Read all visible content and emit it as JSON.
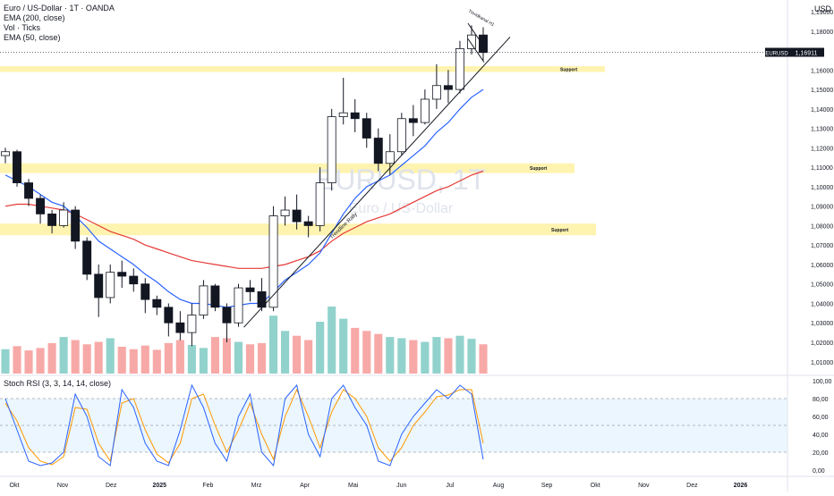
{
  "header": {
    "symbol_title": "Euro / US-Dollar · 1T · OANDA",
    "indicators": [
      "EMA (200, close)",
      "Vol · Ticks",
      "EMA (50, close)"
    ],
    "currency": "USD"
  },
  "watermark": {
    "symbol": "EURUSD, 1T",
    "name": "Euro / US-Dollar"
  },
  "price_axis": {
    "ticks": [
      "1,19000",
      "1,18000",
      "1,16000",
      "1,15000",
      "1,14000",
      "1,13000",
      "1,12000",
      "1,11000",
      "1,10000",
      "1,09000",
      "1,08000",
      "1,07000",
      "1,06000",
      "1,05000",
      "1,04000",
      "1,03000",
      "1,02000",
      "1,01000"
    ],
    "last_price_label": "1,16911",
    "symbol_badge": "EURUSD",
    "last_price": 1.16911
  },
  "oscillator": {
    "title": "Stoch RSI (3, 3, 14, 14, close)",
    "ticks": [
      "100,00",
      "80,00",
      "60,00",
      "40,00",
      "20,00",
      "0,00"
    ]
  },
  "time_axis": {
    "labels": [
      "Okt",
      "Nov",
      "Dez",
      "2025",
      "Feb",
      "Mrz",
      "Apr",
      "Mai",
      "Jun",
      "Jul",
      "Aug",
      "Sep",
      "Okt",
      "Nov",
      "Dez",
      "2026"
    ]
  },
  "annotations": {
    "zones": [
      {
        "label": "Support",
        "low": 1.159,
        "high": 1.162
      },
      {
        "label": "Support",
        "low": 1.107,
        "high": 1.112
      },
      {
        "label": "Support",
        "low": 1.075,
        "high": 1.081
      }
    ],
    "trendline_label": "Trendline Rally",
    "channel_label": "Trendkanal H1"
  },
  "colors": {
    "up": "#26a69a",
    "down": "#ef5350",
    "ema200": "#e53935",
    "ema50": "#2962ff",
    "zone": "#fff3b0",
    "stoch_k": "#2962ff",
    "stoch_d": "#ff9800",
    "osc_band": "#e3f2fd"
  },
  "chart_data": {
    "type": "candlestick",
    "title": "Euro / US-Dollar · 1T · OANDA",
    "ylim": [
      1.003,
      1.196
    ],
    "series": [
      {
        "name": "Price",
        "points": [
          {
            "t": "2024-09-27",
            "o": 1.116,
            "h": 1.12,
            "l": 1.112,
            "c": 1.118
          },
          {
            "t": "2024-10-04",
            "o": 1.118,
            "h": 1.119,
            "l": 1.1,
            "c": 1.102
          },
          {
            "t": "2024-10-11",
            "o": 1.102,
            "h": 1.104,
            "l": 1.09,
            "c": 1.094
          },
          {
            "t": "2024-10-18",
            "o": 1.094,
            "h": 1.096,
            "l": 1.081,
            "c": 1.086
          },
          {
            "t": "2024-10-25",
            "o": 1.086,
            "h": 1.088,
            "l": 1.076,
            "c": 1.08
          },
          {
            "t": "2024-11-01",
            "o": 1.08,
            "h": 1.092,
            "l": 1.079,
            "c": 1.088
          },
          {
            "t": "2024-11-08",
            "o": 1.088,
            "h": 1.09,
            "l": 1.068,
            "c": 1.072
          },
          {
            "t": "2024-11-15",
            "o": 1.072,
            "h": 1.074,
            "l": 1.052,
            "c": 1.055
          },
          {
            "t": "2024-11-22",
            "o": 1.055,
            "h": 1.06,
            "l": 1.033,
            "c": 1.043
          },
          {
            "t": "2024-11-29",
            "o": 1.043,
            "h": 1.06,
            "l": 1.04,
            "c": 1.056
          },
          {
            "t": "2024-12-06",
            "o": 1.056,
            "h": 1.062,
            "l": 1.048,
            "c": 1.054
          },
          {
            "t": "2024-12-13",
            "o": 1.054,
            "h": 1.058,
            "l": 1.046,
            "c": 1.05
          },
          {
            "t": "2024-12-20",
            "o": 1.05,
            "h": 1.053,
            "l": 1.035,
            "c": 1.042
          },
          {
            "t": "2024-12-27",
            "o": 1.042,
            "h": 1.044,
            "l": 1.034,
            "c": 1.038
          },
          {
            "t": "2025-01-03",
            "o": 1.038,
            "h": 1.04,
            "l": 1.023,
            "c": 1.03
          },
          {
            "t": "2025-01-10",
            "o": 1.03,
            "h": 1.036,
            "l": 1.021,
            "c": 1.025
          },
          {
            "t": "2025-01-17",
            "o": 1.025,
            "h": 1.04,
            "l": 1.018,
            "c": 1.034
          },
          {
            "t": "2025-01-24",
            "o": 1.034,
            "h": 1.052,
            "l": 1.032,
            "c": 1.049
          },
          {
            "t": "2025-01-31",
            "o": 1.049,
            "h": 1.05,
            "l": 1.036,
            "c": 1.038
          },
          {
            "t": "2025-02-07",
            "o": 1.038,
            "h": 1.04,
            "l": 1.02,
            "c": 1.03
          },
          {
            "t": "2025-02-14",
            "o": 1.03,
            "h": 1.05,
            "l": 1.028,
            "c": 1.048
          },
          {
            "t": "2025-02-21",
            "o": 1.048,
            "h": 1.052,
            "l": 1.041,
            "c": 1.046
          },
          {
            "t": "2025-02-28",
            "o": 1.046,
            "h": 1.053,
            "l": 1.036,
            "c": 1.038
          },
          {
            "t": "2025-03-07",
            "o": 1.038,
            "h": 1.09,
            "l": 1.036,
            "c": 1.085
          },
          {
            "t": "2025-03-14",
            "o": 1.085,
            "h": 1.095,
            "l": 1.08,
            "c": 1.088
          },
          {
            "t": "2025-03-21",
            "o": 1.088,
            "h": 1.096,
            "l": 1.078,
            "c": 1.082
          },
          {
            "t": "2025-03-28",
            "o": 1.082,
            "h": 1.085,
            "l": 1.074,
            "c": 1.08
          },
          {
            "t": "2025-04-04",
            "o": 1.08,
            "h": 1.11,
            "l": 1.077,
            "c": 1.102
          },
          {
            "t": "2025-04-11",
            "o": 1.102,
            "h": 1.14,
            "l": 1.098,
            "c": 1.136
          },
          {
            "t": "2025-04-18",
            "o": 1.136,
            "h": 1.156,
            "l": 1.132,
            "c": 1.138
          },
          {
            "t": "2025-04-25",
            "o": 1.138,
            "h": 1.145,
            "l": 1.128,
            "c": 1.135
          },
          {
            "t": "2025-05-02",
            "o": 1.135,
            "h": 1.138,
            "l": 1.12,
            "c": 1.125
          },
          {
            "t": "2025-05-09",
            "o": 1.125,
            "h": 1.13,
            "l": 1.108,
            "c": 1.112
          },
          {
            "t": "2025-05-16",
            "o": 1.112,
            "h": 1.127,
            "l": 1.106,
            "c": 1.118
          },
          {
            "t": "2025-05-23",
            "o": 1.118,
            "h": 1.138,
            "l": 1.116,
            "c": 1.135
          },
          {
            "t": "2025-05-30",
            "o": 1.135,
            "h": 1.142,
            "l": 1.126,
            "c": 1.133
          },
          {
            "t": "2025-06-06",
            "o": 1.133,
            "h": 1.15,
            "l": 1.132,
            "c": 1.145
          },
          {
            "t": "2025-06-13",
            "o": 1.145,
            "h": 1.163,
            "l": 1.14,
            "c": 1.152
          },
          {
            "t": "2025-06-20",
            "o": 1.152,
            "h": 1.16,
            "l": 1.143,
            "c": 1.15
          },
          {
            "t": "2025-06-27",
            "o": 1.15,
            "h": 1.175,
            "l": 1.148,
            "c": 1.171
          },
          {
            "t": "2025-07-04",
            "o": 1.171,
            "h": 1.183,
            "l": 1.168,
            "c": 1.178
          },
          {
            "t": "2025-07-11",
            "o": 1.178,
            "h": 1.182,
            "l": 1.165,
            "c": 1.169
          }
        ]
      }
    ],
    "ema200": [
      1.09,
      1.091,
      1.091,
      1.09,
      1.089,
      1.088,
      1.086,
      1.083,
      1.08,
      1.077,
      1.075,
      1.073,
      1.07,
      1.068,
      1.066,
      1.064,
      1.062,
      1.061,
      1.06,
      1.059,
      1.058,
      1.058,
      1.058,
      1.059,
      1.06,
      1.062,
      1.064,
      1.067,
      1.072,
      1.076,
      1.079,
      1.082,
      1.084,
      1.086,
      1.089,
      1.092,
      1.095,
      1.098,
      1.1,
      1.103,
      1.106,
      1.108
    ],
    "ema50": [
      1.106,
      1.103,
      1.1,
      1.096,
      1.092,
      1.09,
      1.085,
      1.079,
      1.072,
      1.068,
      1.064,
      1.06,
      1.055,
      1.051,
      1.046,
      1.042,
      1.04,
      1.04,
      1.039,
      1.038,
      1.039,
      1.04,
      1.04,
      1.046,
      1.052,
      1.056,
      1.06,
      1.066,
      1.076,
      1.086,
      1.094,
      1.1,
      1.103,
      1.106,
      1.111,
      1.116,
      1.121,
      1.128,
      1.133,
      1.14,
      1.146,
      1.15
    ],
    "volume": [
      40,
      45,
      38,
      42,
      50,
      60,
      55,
      48,
      52,
      58,
      44,
      40,
      46,
      39,
      50,
      55,
      47,
      42,
      60,
      58,
      52,
      48,
      50,
      95,
      70,
      62,
      55,
      85,
      110,
      90,
      75,
      70,
      65,
      60,
      58,
      55,
      52,
      60,
      58,
      62,
      57,
      48
    ],
    "stoch_k": [
      80,
      45,
      10,
      5,
      8,
      20,
      85,
      60,
      15,
      5,
      90,
      70,
      30,
      10,
      5,
      45,
      95,
      70,
      30,
      10,
      60,
      85,
      20,
      5,
      80,
      95,
      40,
      15,
      80,
      95,
      70,
      50,
      10,
      5,
      40,
      60,
      75,
      90,
      80,
      95,
      85,
      12
    ],
    "stoch_d": [
      75,
      55,
      25,
      10,
      6,
      15,
      70,
      68,
      30,
      10,
      75,
      80,
      45,
      18,
      8,
      30,
      80,
      85,
      50,
      20,
      45,
      75,
      40,
      12,
      60,
      90,
      60,
      25,
      65,
      90,
      80,
      60,
      25,
      10,
      25,
      50,
      65,
      82,
      84,
      90,
      90,
      30
    ]
  }
}
